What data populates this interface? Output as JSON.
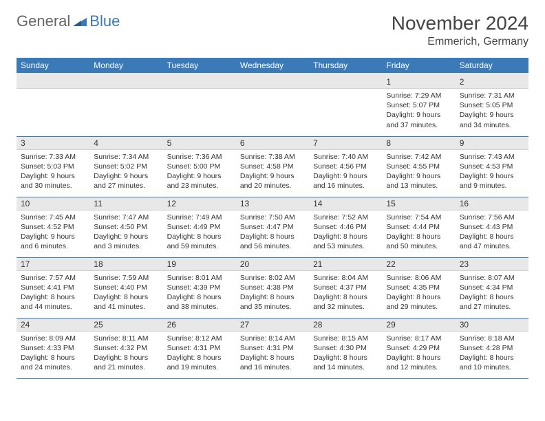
{
  "logo": {
    "text1": "General",
    "text2": "Blue"
  },
  "title": "November 2024",
  "location": "Emmerich, Germany",
  "colors": {
    "header_bg": "#3a7ab8",
    "header_text": "#ffffff",
    "daynum_bg": "#e8e8e8",
    "border": "#3a7ab8",
    "text": "#333333",
    "background": "#ffffff"
  },
  "weekdays": [
    "Sunday",
    "Monday",
    "Tuesday",
    "Wednesday",
    "Thursday",
    "Friday",
    "Saturday"
  ],
  "weeks": [
    [
      {
        "empty": true
      },
      {
        "empty": true
      },
      {
        "empty": true
      },
      {
        "empty": true
      },
      {
        "empty": true
      },
      {
        "num": "1",
        "sunrise": "Sunrise: 7:29 AM",
        "sunset": "Sunset: 5:07 PM",
        "daylight": "Daylight: 9 hours and 37 minutes."
      },
      {
        "num": "2",
        "sunrise": "Sunrise: 7:31 AM",
        "sunset": "Sunset: 5:05 PM",
        "daylight": "Daylight: 9 hours and 34 minutes."
      }
    ],
    [
      {
        "num": "3",
        "sunrise": "Sunrise: 7:33 AM",
        "sunset": "Sunset: 5:03 PM",
        "daylight": "Daylight: 9 hours and 30 minutes."
      },
      {
        "num": "4",
        "sunrise": "Sunrise: 7:34 AM",
        "sunset": "Sunset: 5:02 PM",
        "daylight": "Daylight: 9 hours and 27 minutes."
      },
      {
        "num": "5",
        "sunrise": "Sunrise: 7:36 AM",
        "sunset": "Sunset: 5:00 PM",
        "daylight": "Daylight: 9 hours and 23 minutes."
      },
      {
        "num": "6",
        "sunrise": "Sunrise: 7:38 AM",
        "sunset": "Sunset: 4:58 PM",
        "daylight": "Daylight: 9 hours and 20 minutes."
      },
      {
        "num": "7",
        "sunrise": "Sunrise: 7:40 AM",
        "sunset": "Sunset: 4:56 PM",
        "daylight": "Daylight: 9 hours and 16 minutes."
      },
      {
        "num": "8",
        "sunrise": "Sunrise: 7:42 AM",
        "sunset": "Sunset: 4:55 PM",
        "daylight": "Daylight: 9 hours and 13 minutes."
      },
      {
        "num": "9",
        "sunrise": "Sunrise: 7:43 AM",
        "sunset": "Sunset: 4:53 PM",
        "daylight": "Daylight: 9 hours and 9 minutes."
      }
    ],
    [
      {
        "num": "10",
        "sunrise": "Sunrise: 7:45 AM",
        "sunset": "Sunset: 4:52 PM",
        "daylight": "Daylight: 9 hours and 6 minutes."
      },
      {
        "num": "11",
        "sunrise": "Sunrise: 7:47 AM",
        "sunset": "Sunset: 4:50 PM",
        "daylight": "Daylight: 9 hours and 3 minutes."
      },
      {
        "num": "12",
        "sunrise": "Sunrise: 7:49 AM",
        "sunset": "Sunset: 4:49 PM",
        "daylight": "Daylight: 8 hours and 59 minutes."
      },
      {
        "num": "13",
        "sunrise": "Sunrise: 7:50 AM",
        "sunset": "Sunset: 4:47 PM",
        "daylight": "Daylight: 8 hours and 56 minutes."
      },
      {
        "num": "14",
        "sunrise": "Sunrise: 7:52 AM",
        "sunset": "Sunset: 4:46 PM",
        "daylight": "Daylight: 8 hours and 53 minutes."
      },
      {
        "num": "15",
        "sunrise": "Sunrise: 7:54 AM",
        "sunset": "Sunset: 4:44 PM",
        "daylight": "Daylight: 8 hours and 50 minutes."
      },
      {
        "num": "16",
        "sunrise": "Sunrise: 7:56 AM",
        "sunset": "Sunset: 4:43 PM",
        "daylight": "Daylight: 8 hours and 47 minutes."
      }
    ],
    [
      {
        "num": "17",
        "sunrise": "Sunrise: 7:57 AM",
        "sunset": "Sunset: 4:41 PM",
        "daylight": "Daylight: 8 hours and 44 minutes."
      },
      {
        "num": "18",
        "sunrise": "Sunrise: 7:59 AM",
        "sunset": "Sunset: 4:40 PM",
        "daylight": "Daylight: 8 hours and 41 minutes."
      },
      {
        "num": "19",
        "sunrise": "Sunrise: 8:01 AM",
        "sunset": "Sunset: 4:39 PM",
        "daylight": "Daylight: 8 hours and 38 minutes."
      },
      {
        "num": "20",
        "sunrise": "Sunrise: 8:02 AM",
        "sunset": "Sunset: 4:38 PM",
        "daylight": "Daylight: 8 hours and 35 minutes."
      },
      {
        "num": "21",
        "sunrise": "Sunrise: 8:04 AM",
        "sunset": "Sunset: 4:37 PM",
        "daylight": "Daylight: 8 hours and 32 minutes."
      },
      {
        "num": "22",
        "sunrise": "Sunrise: 8:06 AM",
        "sunset": "Sunset: 4:35 PM",
        "daylight": "Daylight: 8 hours and 29 minutes."
      },
      {
        "num": "23",
        "sunrise": "Sunrise: 8:07 AM",
        "sunset": "Sunset: 4:34 PM",
        "daylight": "Daylight: 8 hours and 27 minutes."
      }
    ],
    [
      {
        "num": "24",
        "sunrise": "Sunrise: 8:09 AM",
        "sunset": "Sunset: 4:33 PM",
        "daylight": "Daylight: 8 hours and 24 minutes."
      },
      {
        "num": "25",
        "sunrise": "Sunrise: 8:11 AM",
        "sunset": "Sunset: 4:32 PM",
        "daylight": "Daylight: 8 hours and 21 minutes."
      },
      {
        "num": "26",
        "sunrise": "Sunrise: 8:12 AM",
        "sunset": "Sunset: 4:31 PM",
        "daylight": "Daylight: 8 hours and 19 minutes."
      },
      {
        "num": "27",
        "sunrise": "Sunrise: 8:14 AM",
        "sunset": "Sunset: 4:31 PM",
        "daylight": "Daylight: 8 hours and 16 minutes."
      },
      {
        "num": "28",
        "sunrise": "Sunrise: 8:15 AM",
        "sunset": "Sunset: 4:30 PM",
        "daylight": "Daylight: 8 hours and 14 minutes."
      },
      {
        "num": "29",
        "sunrise": "Sunrise: 8:17 AM",
        "sunset": "Sunset: 4:29 PM",
        "daylight": "Daylight: 8 hours and 12 minutes."
      },
      {
        "num": "30",
        "sunrise": "Sunrise: 8:18 AM",
        "sunset": "Sunset: 4:28 PM",
        "daylight": "Daylight: 8 hours and 10 minutes."
      }
    ]
  ]
}
